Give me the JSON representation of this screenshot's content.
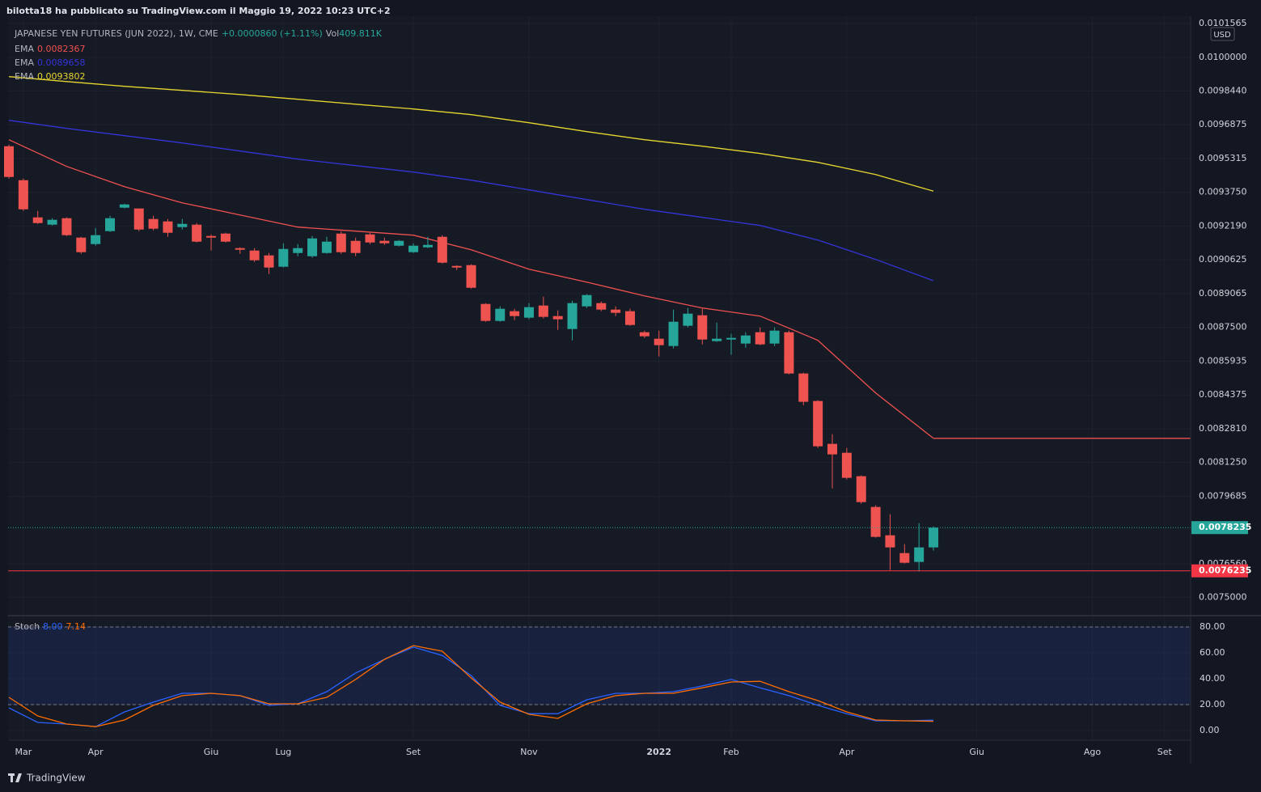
{
  "header": {
    "publisher": "bilotta18 ha pubblicato su TradingView.com il Maggio 19, 2022 10:23 UTC+2",
    "brand": "TradingView"
  },
  "chart_data": [
    {
      "type": "candlestick",
      "title": "JAPANESE YEN FUTURES (JUN 2022), 1W, CME",
      "change": "+0.0000860 (+1.11%)",
      "volume_label": "Vol",
      "volume": "409.811K",
      "currency": "USD",
      "up_color": "#26a69a",
      "down_color": "#ef5350",
      "categories": [
        null,
        "Mar",
        null,
        null,
        null,
        null,
        "Apr",
        null,
        null,
        null,
        null,
        null,
        null,
        null,
        "Giu",
        null,
        null,
        null,
        null,
        "Lug",
        null,
        null,
        null,
        null,
        null,
        null,
        null,
        null,
        "Set",
        null,
        null,
        null,
        null,
        null,
        null,
        null,
        "Nov",
        null,
        null,
        null,
        null,
        null,
        null,
        null,
        null,
        "2022",
        null,
        null,
        null,
        null,
        "Feb",
        null,
        null,
        null,
        null,
        null,
        null,
        null,
        "Apr",
        null,
        null,
        null,
        null,
        null,
        null,
        null,
        null,
        "Giu",
        null,
        null,
        null,
        null,
        null,
        null,
        null,
        "Ago",
        null,
        null,
        null,
        null,
        "Set",
        null
      ],
      "open": [
        0.0095883,
        0.0094311,
        0.009259,
        0.0092253,
        0.0092552,
        0.0091654,
        0.0091355,
        0.0091954,
        0.0093039,
        0.0093002,
        0.0092515,
        0.0092403,
        0.0092141,
        0.0092253,
        0.0091729,
        0.0091841,
        0.0091168,
        0.0091055,
        0.0090831,
        0.0090307,
        0.0090943,
        0.0090793,
        0.0090943,
        0.0091841,
        0.0091504,
        0.0091804,
        0.0091504,
        0.009128,
        0.0090981,
        0.0091205,
        0.0091692,
        0.0090344,
        0.0090382,
        0.0088585,
        0.0087799,
        0.0088249,
        0.0087949,
        0.0088511,
        0.0088024,
        0.0087425,
        0.0088473,
        0.0088623,
        0.0088323,
        0.0088249,
        0.0087276,
        0.0086976,
        0.0086639,
        0.0087575,
        0.0088061,
        0.0086864,
        0.0086939,
        0.0086752,
        0.0087276,
        0.0086752,
        0.0087276,
        0.0085367,
        0.0084094,
        0.0082111,
        0.0081699,
        0.0080614,
        0.0079192,
        0.0077882,
        0.0077058,
        0.0076647,
        0.007732,
        null,
        null,
        null,
        null,
        null,
        null,
        null,
        null,
        null,
        null,
        null,
        null,
        null,
        null,
        null,
        null,
        null
      ],
      "high": [
        0.0095958,
        0.0094386,
        0.0092889,
        0.0092552,
        0.009259,
        0.0091692,
        0.0092103,
        0.0092665,
        0.0093226,
        0.0093002,
        0.0092665,
        0.0092515,
        0.0092515,
        0.0092328,
        0.0091804,
        0.0091879,
        0.0091205,
        0.0091168,
        0.0090943,
        0.0091392,
        0.0091355,
        0.0091729,
        0.0091692,
        0.0091954,
        0.0091654,
        0.0091879,
        0.0091654,
        0.0091542,
        0.0091392,
        0.0091692,
        0.0091767,
        0.0090382,
        0.0090419,
        0.0088623,
        0.0088473,
        0.0088361,
        0.0088623,
        0.0088922,
        0.0088286,
        0.0088735,
        0.0089034,
        0.0088698,
        0.0088473,
        0.0088361,
        0.008735,
        0.008735,
        0.0088323,
        0.0088398,
        0.0088361,
        0.0087725,
        0.0087201,
        0.0087276,
        0.00875,
        0.00875,
        0.008735,
        0.0085404,
        0.0084132,
        0.008256,
        0.0081924,
        0.0080651,
        0.0079267,
        0.0078855,
        0.007747,
        0.0078443,
        0.0078293,
        null,
        null,
        null,
        null,
        null,
        null,
        null,
        null,
        null,
        null,
        null,
        null,
        null,
        null,
        null,
        null,
        null
      ],
      "low": [
        0.0094386,
        0.0092889,
        0.009229,
        0.0092216,
        0.0091729,
        0.0090906,
        0.009128,
        0.0091916,
        0.0093002,
        0.0091954,
        0.0091991,
        0.0091692,
        0.0092029,
        0.009143,
        0.0091055,
        0.009143,
        0.0090906,
        0.0090531,
        0.008997,
        0.0090269,
        0.0090793,
        0.0090719,
        0.0090906,
        0.0090906,
        0.0090793,
        0.0091355,
        0.0091317,
        0.0091243,
        0.0090943,
        0.0091168,
        0.0090457,
        0.0090157,
        0.0089296,
        0.0087762,
        0.0087762,
        0.0087837,
        0.0087874,
        0.0087912,
        0.0087388,
        0.0086901,
        0.0088398,
        0.0088249,
        0.0088024,
        0.0087575,
        0.0087014,
        0.0086153,
        0.0086527,
        0.00875,
        0.0086714,
        0.0086826,
        0.0086228,
        0.0086564,
        0.0086677,
        0.0086639,
        0.0085329,
        0.0083907,
        0.0081924,
        0.0080052,
        0.0080464,
        0.0079341,
        0.007777,
        0.0076273,
        0.0076572,
        0.0076198,
        0.0077171,
        null,
        null,
        null,
        null,
        null,
        null,
        null,
        null,
        null,
        null,
        null,
        null,
        null,
        null,
        null,
        null,
        null
      ],
      "close": [
        0.0094461,
        0.0092964,
        0.0092328,
        0.0092478,
        0.0091767,
        0.0090981,
        0.0091767,
        0.0092552,
        0.0093189,
        0.0092029,
        0.0092066,
        0.0091879,
        0.009229,
        0.0091467,
        0.0091654,
        0.0091467,
        0.0091093,
        0.0090606,
        0.0090269,
        0.009113,
        0.0091168,
        0.0091617,
        0.0091467,
        0.0090981,
        0.0090943,
        0.009143,
        0.0091392,
        0.0091504,
        0.009128,
        0.0091317,
        0.0090494,
        0.0090269,
        0.0089334,
        0.0087799,
        0.0088361,
        0.0088024,
        0.0088436,
        0.0087987,
        0.0087874,
        0.0088623,
        0.0088997,
        0.0088323,
        0.0088174,
        0.0087612,
        0.0087088,
        0.0086677,
        0.0087762,
        0.0088136,
        0.0086939,
        0.0086976,
        0.0087014,
        0.0087126,
        0.0086714,
        0.008735,
        0.0085367,
        0.0084057,
        0.0081999,
        0.0081624,
        0.0080539,
        0.0079416,
        0.0077807,
        0.007732,
        0.0076609,
        0.007732,
        0.0078235,
        null,
        null,
        null,
        null,
        null,
        null,
        null,
        null,
        null,
        null,
        null,
        null,
        null,
        null,
        null,
        null,
        null
      ],
      "series": [
        {
          "name": "EMA",
          "color": "#f05050",
          "extend": true,
          "x": [
            0,
            4,
            8,
            12,
            16,
            20,
            24,
            28,
            32,
            36,
            40,
            44,
            48,
            52,
            56,
            60,
            64
          ],
          "values": [
            0.0096183,
            0.0094948,
            0.0094012,
            0.0093264,
            0.0092702,
            0.0092141,
            0.0091954,
            0.0091767,
            0.0091093,
            0.0090195,
            0.0089596,
            0.008896,
            0.0088398,
            0.0088024,
            0.0086901,
            0.0084469,
            0.0082367
          ]
        },
        {
          "name": "EMA",
          "color": "#3434d8",
          "x": [
            0,
            4,
            8,
            12,
            16,
            20,
            24,
            28,
            32,
            36,
            40,
            44,
            48,
            52,
            56,
            60,
            64
          ],
          "values": [
            0.0097081,
            0.0096707,
            0.009637,
            0.0096033,
            0.0095659,
            0.0095284,
            0.0094985,
            0.0094686,
            0.0094311,
            0.0093862,
            0.0093413,
            0.0092964,
            0.009259,
            0.0092216,
            0.0091542,
            0.0090644,
            0.0089658
          ]
        },
        {
          "name": "EMA",
          "color": "#e8d630",
          "x": [
            0,
            4,
            8,
            12,
            16,
            20,
            24,
            28,
            32,
            36,
            40,
            44,
            48,
            52,
            56,
            60,
            64
          ],
          "values": [
            0.0099102,
            0.0098877,
            0.0098653,
            0.0098466,
            0.0098278,
            0.0098054,
            0.0097829,
            0.0097605,
            0.0097343,
            0.0096969,
            0.0096557,
            0.0096183,
            0.0095883,
            0.0095546,
            0.0095135,
            0.0094573,
            0.0093802
          ]
        }
      ],
      "hlines": [
        {
          "value": 0.0076235,
          "color": "#f23645"
        }
      ],
      "ylim": [
        0.00742,
        0.01019
      ],
      "yticks": [
        {
          "value": 0.0101565,
          "label": "0.0101565"
        },
        {
          "value": 0.01,
          "label": "0.0100000"
        },
        {
          "value": 0.009844,
          "label": "0.0098440"
        },
        {
          "value": 0.0096875,
          "label": "0.0096875"
        },
        {
          "value": 0.0095315,
          "label": "0.0095315"
        },
        {
          "value": 0.009375,
          "label": "0.0093750"
        },
        {
          "value": 0.009219,
          "label": "0.0092190"
        },
        {
          "value": 0.0090625,
          "label": "0.0090625"
        },
        {
          "value": 0.0089065,
          "label": "0.0089065"
        },
        {
          "value": 0.00875,
          "label": "0.0087500"
        },
        {
          "value": 0.0085935,
          "label": "0.0085935"
        },
        {
          "value": 0.0084375,
          "label": "0.0084375"
        },
        {
          "value": 0.008281,
          "label": "0.0082810"
        },
        {
          "value": 0.008125,
          "label": "0.0081250"
        },
        {
          "value": 0.0079685,
          "label": "0.0079685"
        },
        {
          "value": 0.007656,
          "label": "0.0076560"
        },
        {
          "value": 0.0075,
          "label": "0.0075000"
        }
      ],
      "grid": true
    },
    {
      "type": "line",
      "title": "Stoch",
      "series": [
        {
          "color": "#2962ff",
          "value_label": "8.00",
          "x": [
            0,
            2,
            4,
            6,
            8,
            10,
            12,
            14,
            16,
            18,
            20,
            22,
            24,
            26,
            28,
            30,
            32,
            34,
            36,
            38,
            40,
            42,
            44,
            46,
            48,
            50,
            52,
            54,
            56,
            58,
            60,
            62,
            64
          ],
          "values": [
            17.5,
            6.25,
            5,
            3,
            14.4,
            21.9,
            28.75,
            28.75,
            26.9,
            19.4,
            20.6,
            30,
            44.4,
            55,
            64.4,
            58,
            42.5,
            19.4,
            13,
            13,
            23.75,
            28.75,
            28.75,
            30,
            34.4,
            39.4,
            33,
            26.9,
            19.4,
            13,
            7.5,
            7.5,
            8
          ]
        },
        {
          "color": "#ff6d00",
          "value_label": "7.14",
          "x": [
            0,
            2,
            4,
            6,
            8,
            10,
            12,
            14,
            16,
            18,
            20,
            22,
            24,
            26,
            28,
            30,
            32,
            34,
            36,
            38,
            40,
            42,
            44,
            46,
            48,
            50,
            52,
            54,
            56,
            58,
            60,
            62,
            64
          ],
          "values": [
            25.6,
            11.25,
            5,
            3,
            8.1,
            19.4,
            26.9,
            28.75,
            26.9,
            20.6,
            20.6,
            25.6,
            39.4,
            55,
            65.6,
            61.25,
            40.6,
            21.9,
            12.5,
            9.4,
            20.6,
            26.9,
            28.75,
            28.75,
            33,
            37.5,
            38,
            30,
            23.1,
            14.4,
            8.1,
            7.5,
            7.14
          ]
        }
      ],
      "bands": [
        20,
        80
      ],
      "band_color": "#2962ff",
      "ylim": [
        -7.5,
        88.1
      ],
      "yticks": [
        {
          "value": 0,
          "label": "0.00"
        },
        {
          "value": 20,
          "label": "20.00"
        },
        {
          "value": 40,
          "label": "40.00"
        },
        {
          "value": 60,
          "label": "60.00"
        },
        {
          "value": 80,
          "label": "80.00"
        }
      ],
      "grid": true
    }
  ]
}
